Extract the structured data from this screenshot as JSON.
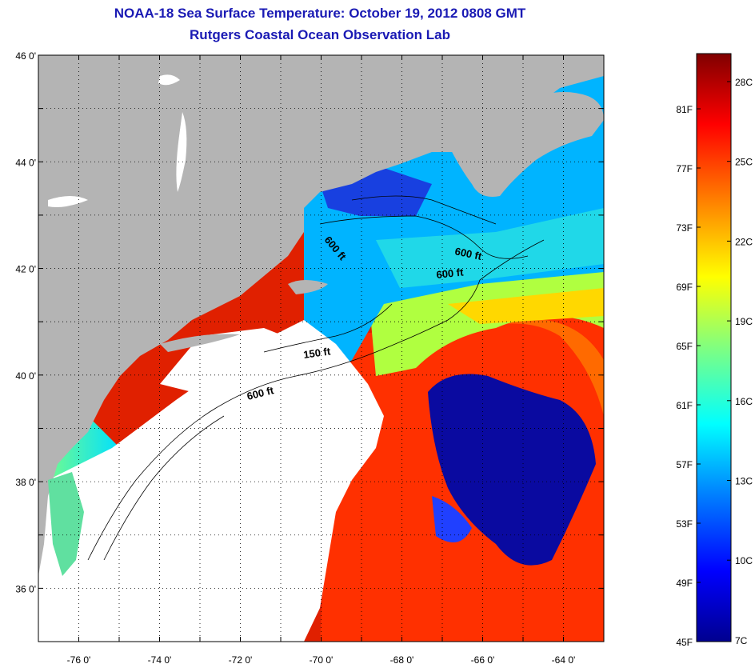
{
  "header": {
    "title": "NOAA-18 Sea Surface Temperature:  October 19, 2012 0808 GMT",
    "subtitle": "Rutgers Coastal Ocean Observation Lab"
  },
  "map": {
    "lat_range": [
      35,
      46
    ],
    "lon_range": [
      -77,
      -63
    ],
    "lat_ticks": [
      {
        "value": 46,
        "label": "46 0'"
      },
      {
        "value": 44,
        "label": "44 0'"
      },
      {
        "value": 42,
        "label": "42 0'"
      },
      {
        "value": 40,
        "label": "40 0'"
      },
      {
        "value": 38,
        "label": "38 0'"
      },
      {
        "value": 36,
        "label": "36 0'"
      }
    ],
    "lon_ticks": [
      {
        "value": -76,
        "label": "-76 0'"
      },
      {
        "value": -74,
        "label": "-74 0'"
      },
      {
        "value": -72,
        "label": "-72 0'"
      },
      {
        "value": -70,
        "label": "-70 0'"
      },
      {
        "value": -68,
        "label": "-68 0'"
      },
      {
        "value": -66,
        "label": "-66 0'"
      },
      {
        "value": -64,
        "label": "-64 0'"
      }
    ],
    "contour_labels": [
      "600 ft",
      "600 ft",
      "600 ft",
      "150 ft",
      "600 ft"
    ],
    "colors": {
      "land": "#b4b4b4",
      "cloud": "#ffffff",
      "frame": "#000000",
      "grid": "#000000"
    }
  },
  "colorbar": {
    "colors": [
      "#00008f",
      "#0000ff",
      "#0080ff",
      "#00ffff",
      "#80ff80",
      "#ffff00",
      "#ff8000",
      "#ff0000",
      "#800000"
    ],
    "fahrenheit_labels": [
      "81F",
      "77F",
      "73F",
      "69F",
      "65F",
      "61F",
      "57F",
      "53F",
      "49F",
      "45F"
    ],
    "celsius_labels": [
      "28C",
      "25C",
      "22C",
      "19C",
      "16C",
      "13C",
      "10C",
      "7C"
    ]
  }
}
